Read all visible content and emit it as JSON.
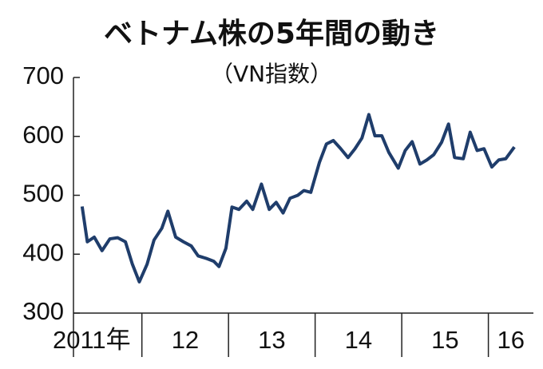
{
  "chart_data": {
    "type": "line",
    "title": "ベトナム株の5年間の動き",
    "subtitle": "（VN指数）",
    "x": [
      2011.31,
      2011.37,
      2011.45,
      2011.54,
      2011.63,
      2011.72,
      2011.81,
      2011.89,
      2011.97,
      2012.06,
      2012.14,
      2012.23,
      2012.3,
      2012.39,
      2012.48,
      2012.57,
      2012.65,
      2012.74,
      2012.83,
      2012.89,
      2012.97,
      2013.04,
      2013.12,
      2013.21,
      2013.28,
      2013.38,
      2013.47,
      2013.55,
      2013.63,
      2013.71,
      2013.8,
      2013.87,
      2013.95,
      2014.05,
      2014.13,
      2014.21,
      2014.29,
      2014.38,
      2014.46,
      2014.54,
      2014.62,
      2014.69,
      2014.77,
      2014.85,
      2014.96,
      2015.04,
      2015.12,
      2015.21,
      2015.29,
      2015.37,
      2015.46,
      2015.54,
      2015.61,
      2015.71,
      2015.79,
      2015.87,
      2015.95,
      2016.04,
      2016.12,
      2016.2,
      2016.3
    ],
    "series": [
      {
        "color": "#1f3d6b",
        "values": [
          481,
          421,
          429,
          406,
          426,
          428,
          421,
          383,
          353,
          383,
          424,
          444,
          473,
          429,
          421,
          414,
          397,
          393,
          388,
          379,
          410,
          480,
          476,
          490,
          476,
          519,
          476,
          488,
          470,
          495,
          500,
          508,
          505,
          556,
          587,
          593,
          580,
          564,
          579,
          597,
          637,
          601,
          601,
          573,
          546,
          576,
          591,
          553,
          560,
          569,
          590,
          621,
          564,
          562,
          607,
          576,
          579,
          548,
          560,
          562,
          582
        ]
      }
    ],
    "xlim": [
      2011.21,
      2016.52
    ],
    "xticks": [
      {
        "value": 2011,
        "label": "2011年"
      },
      {
        "value": 2012,
        "label": "12"
      },
      {
        "value": 2013,
        "label": "13"
      },
      {
        "value": 2014,
        "label": "14"
      },
      {
        "value": 2015,
        "label": "15"
      },
      {
        "value": 2016,
        "label": "16"
      }
    ],
    "ylim": [
      300,
      700
    ],
    "yticks": [
      300,
      400,
      500,
      600,
      700
    ]
  }
}
